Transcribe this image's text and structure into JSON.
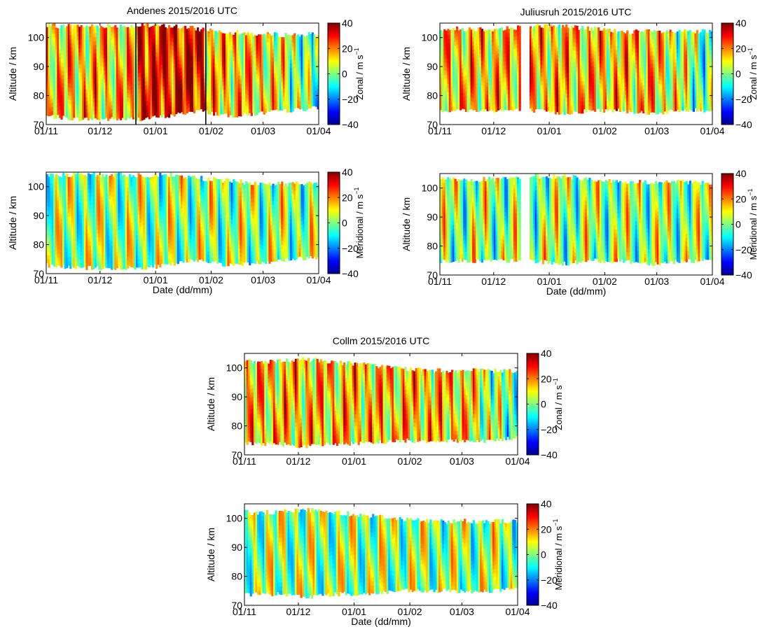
{
  "colormap": {
    "name": "jet",
    "stops": [
      "#00008f",
      "#0000ff",
      "#00ffff",
      "#ffff00",
      "#ff0000",
      "#800000"
    ]
  },
  "shared": {
    "ylabel": "Altitude / km",
    "xlabel": "Date (dd/mm)",
    "x_ticks": [
      "01/11",
      "01/12",
      "01/01",
      "01/02",
      "01/03",
      "01/04"
    ],
    "y_ticks": [
      "70",
      "80",
      "90",
      "100"
    ],
    "ylim": [
      70,
      105
    ],
    "colorbar_ticks": [
      "40",
      "20",
      "0",
      "−20",
      "−40"
    ],
    "colorbar_range": [
      -40,
      40
    ],
    "zonal_label": "Zonal / m s",
    "meridional_label": "Meridional / m s",
    "unit_superscript": "−1"
  },
  "chart_data": [
    {
      "type": "heatmap",
      "title": "Andenes 2015/2016 UTC",
      "component": "zonal",
      "ylabel": "Altitude / km",
      "xlabel": "",
      "x_ticks": [
        "01/11",
        "01/12",
        "01/01",
        "01/02",
        "01/03",
        "01/04"
      ],
      "ylim": [
        70,
        105
      ],
      "colorbar_range": [
        -40,
        40
      ],
      "vertical_markers": [
        "21/12",
        "29/01"
      ],
      "bottom_altitude": [
        73,
        72,
        72,
        72,
        73,
        75,
        73,
        74,
        75,
        76
      ],
      "top_altitude": [
        104,
        104,
        104,
        104,
        104,
        103,
        102,
        101,
        101,
        101
      ]
    },
    {
      "type": "heatmap",
      "title": "",
      "component": "meridional",
      "ylabel": "Altitude / km",
      "xlabel": "Date (dd/mm)",
      "x_ticks": [
        "01/11",
        "01/12",
        "01/01",
        "01/02",
        "01/03",
        "01/04"
      ],
      "ylim": [
        70,
        105
      ],
      "colorbar_range": [
        -40,
        40
      ],
      "bottom_altitude": [
        73,
        72,
        72,
        72,
        73,
        75,
        73,
        74,
        75,
        76
      ],
      "top_altitude": [
        104,
        104,
        104,
        104,
        104,
        103,
        102,
        101,
        101,
        101
      ]
    },
    {
      "type": "heatmap",
      "title": "Juliusruh 2015/2016 UTC",
      "component": "zonal",
      "ylabel": "Altitude / km",
      "xlabel": "",
      "x_ticks": [
        "01/11",
        "01/12",
        "01/01",
        "01/02",
        "01/03",
        "01/04"
      ],
      "ylim": [
        70,
        105
      ],
      "colorbar_range": [
        -40,
        40
      ],
      "data_gap": [
        "16/12",
        "21/12"
      ],
      "bottom_altitude": [
        75,
        75,
        75,
        75,
        74,
        75,
        75,
        74,
        75,
        75
      ],
      "top_altitude": [
        103,
        103,
        103,
        104,
        104,
        103,
        102,
        102,
        102,
        102
      ]
    },
    {
      "type": "heatmap",
      "title": "",
      "component": "meridional",
      "ylabel": "Altitude / km",
      "xlabel": "Date (dd/mm)",
      "x_ticks": [
        "01/11",
        "01/12",
        "01/01",
        "01/02",
        "01/03",
        "01/04"
      ],
      "ylim": [
        70,
        105
      ],
      "colorbar_range": [
        -40,
        40
      ],
      "data_gap": [
        "16/12",
        "21/12"
      ],
      "bottom_altitude": [
        75,
        75,
        75,
        75,
        74,
        75,
        75,
        74,
        75,
        75
      ],
      "top_altitude": [
        103,
        103,
        103,
        104,
        104,
        103,
        102,
        102,
        102,
        102
      ]
    },
    {
      "type": "heatmap",
      "title": "Collm 2015/2016 UTC",
      "component": "zonal",
      "ylabel": "Altitude / km",
      "xlabel": "",
      "x_ticks": [
        "01/11",
        "01/12",
        "01/01",
        "01/02",
        "01/03",
        "01/04"
      ],
      "ylim": [
        70,
        105
      ],
      "colorbar_range": [
        -40,
        40
      ],
      "bottom_altitude": [
        74,
        74,
        73,
        74,
        74,
        75,
        75,
        75,
        75,
        76
      ],
      "top_altitude": [
        102,
        102,
        103,
        102,
        101,
        100,
        99,
        99,
        99,
        99
      ]
    },
    {
      "type": "heatmap",
      "title": "",
      "component": "meridional",
      "ylabel": "Altitude / km",
      "xlabel": "Date (dd/mm)",
      "x_ticks": [
        "01/11",
        "01/12",
        "01/01",
        "01/02",
        "01/03",
        "01/04"
      ],
      "ylim": [
        70,
        105
      ],
      "colorbar_range": [
        -40,
        40
      ],
      "bottom_altitude": [
        74,
        74,
        73,
        74,
        74,
        75,
        75,
        75,
        75,
        76
      ],
      "top_altitude": [
        102,
        102,
        103,
        102,
        101,
        100,
        99,
        99,
        99,
        99
      ]
    }
  ]
}
